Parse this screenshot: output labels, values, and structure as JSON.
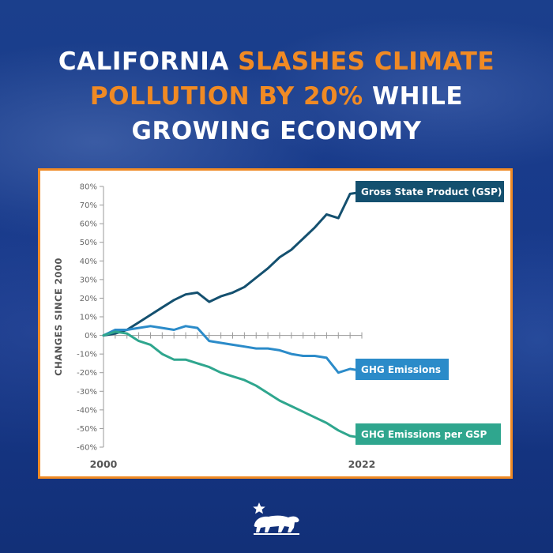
{
  "headline": {
    "line1_a": "California",
    "line1_b": "Slashes Climate",
    "line2_a": "Pollution by 20%",
    "line2_b": "While",
    "line3": "Growing Economy"
  },
  "colors": {
    "background": "#17388a",
    "accent": "#f08a24",
    "gsp": "#14506f",
    "ghg": "#2b8bc9",
    "ghg_per_gsp": "#2fa68e"
  },
  "icons": {
    "footer": "california-bear-star-icon"
  },
  "chart_data": {
    "type": "line",
    "title": "",
    "xlabel": "",
    "ylabel": "CHANGES SINCE 2000",
    "x_tick_labels": [
      "2000",
      "2022"
    ],
    "ylim": [
      -60,
      80
    ],
    "y_ticks": [
      80,
      70,
      60,
      50,
      40,
      30,
      20,
      10,
      0,
      -10,
      -20,
      -30,
      -40,
      -50,
      -60
    ],
    "y_tick_labels": [
      "80%",
      "70%",
      "60%",
      "50%",
      "40%",
      "30%",
      "20%",
      "10%",
      "0%",
      "-10%",
      "-20%",
      "-30%",
      "-40%",
      "-50%",
      "-60%"
    ],
    "x": [
      2000,
      2001,
      2002,
      2003,
      2004,
      2005,
      2006,
      2007,
      2008,
      2009,
      2010,
      2011,
      2012,
      2013,
      2014,
      2015,
      2016,
      2017,
      2018,
      2019,
      2020,
      2021,
      2022
    ],
    "grid": false,
    "series": [
      {
        "name": "Gross State Product (GSP)",
        "key": "gsp",
        "values": [
          0,
          1,
          3,
          7,
          11,
          15,
          19,
          22,
          23,
          18,
          21,
          23,
          26,
          31,
          36,
          42,
          46,
          52,
          58,
          65,
          63,
          76,
          77
        ]
      },
      {
        "name": "GHG Emissions",
        "key": "ghg",
        "values": [
          0,
          3,
          3,
          4,
          5,
          4,
          3,
          5,
          4,
          -3,
          -4,
          -5,
          -6,
          -7,
          -7,
          -8,
          -10,
          -11,
          -11,
          -12,
          -20,
          -18,
          -19
        ]
      },
      {
        "name": "GHG Emissions per GSP",
        "key": "ghg_per_gsp",
        "values": [
          0,
          2,
          1,
          -3,
          -5,
          -10,
          -13,
          -13,
          -15,
          -17,
          -20,
          -22,
          -24,
          -27,
          -31,
          -35,
          -38,
          -41,
          -44,
          -47,
          -51,
          -54,
          -55
        ]
      }
    ]
  }
}
